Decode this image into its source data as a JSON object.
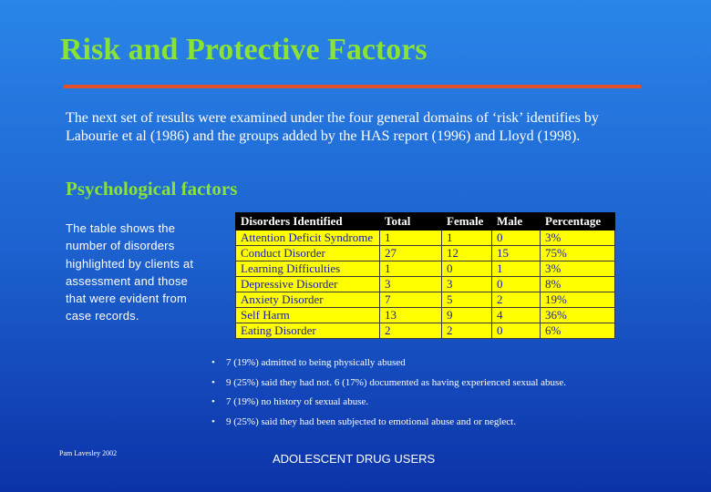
{
  "slide": {
    "title": "Risk and Protective Factors",
    "intro": "The next set of results were examined under the four general domains of ‘risk’ identifies by Labourie et al (1986) and the groups added by the HAS report (1996) and Lloyd (1998).",
    "section_heading": "Psychological factors",
    "table_caption": "The table shows the number of disorders highlighted by clients at assessment and those that were evident from case records."
  },
  "table": {
    "headers": [
      "Disorders Identified",
      "Total",
      "Female",
      "Male",
      "Percentage"
    ],
    "rows": [
      [
        "Attention Deficit Syndrome",
        "1",
        "1",
        "0",
        "3%"
      ],
      [
        "Conduct Disorder",
        "27",
        "12",
        "15",
        "75%"
      ],
      [
        "Learning Difficulties",
        "1",
        "0",
        "1",
        "3%"
      ],
      [
        "Depressive Disorder",
        "3",
        "3",
        "0",
        "8%"
      ],
      [
        "Anxiety Disorder",
        "7",
        "5",
        "2",
        "19%"
      ],
      [
        "Self Harm",
        "13",
        "9",
        "4",
        "36%"
      ],
      [
        "Eating Disorder",
        "2",
        "2",
        "0",
        "6%"
      ]
    ]
  },
  "bullets": [
    "7 (19%) admitted to being physically abused",
    "9 (25%) said they had not. 6 (17%) documented as having experienced sexual abuse.",
    "7 (19%) no history of sexual abuse.",
    "9 (25%) said they had been subjected to emotional abuse and or neglect."
  ],
  "footer": {
    "author": "Pam Lavesley 2002",
    "center": "ADOLESCENT DRUG USERS"
  },
  "colors": {
    "title": "#8ae234",
    "rule": "#e0502a",
    "table_bg": "#ffff00",
    "table_text": "#1a1aa8"
  }
}
